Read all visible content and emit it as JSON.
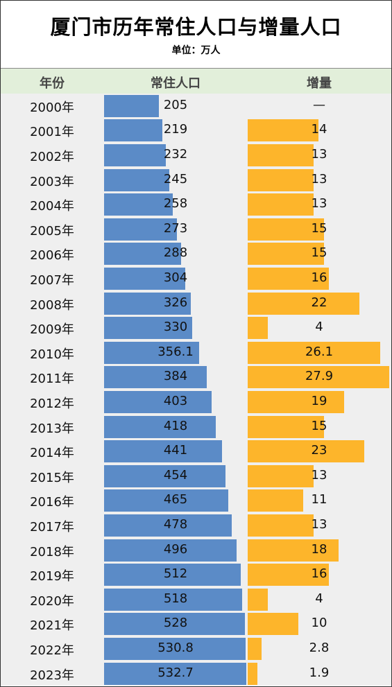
{
  "title": "厦门市历年常住人口与增量人口",
  "subtitle": "单位：万人",
  "header": {
    "year_label": "年份",
    "pop_label": "常住人口",
    "inc_label": "增量"
  },
  "colors": {
    "pop_bar": "#5b8bc7",
    "inc_bar": "#fdb52b",
    "header_bg": "#e2efda",
    "body_bg": "#efefef"
  },
  "chart_data": {
    "type": "bar",
    "title": "厦门市历年常住人口与增量人口",
    "subtitle": "单位：万人",
    "categories": [
      "2000年",
      "2001年",
      "2002年",
      "2003年",
      "2004年",
      "2005年",
      "2006年",
      "2007年",
      "2008年",
      "2009年",
      "2010年",
      "2011年",
      "2012年",
      "2013年",
      "2014年",
      "2015年",
      "2016年",
      "2017年",
      "2018年",
      "2019年",
      "2020年",
      "2021年",
      "2022年",
      "2023年"
    ],
    "series": [
      {
        "name": "常住人口",
        "values": [
          205,
          219,
          232,
          245,
          258,
          273,
          288,
          304,
          326,
          330,
          356.1,
          384,
          403,
          418,
          441,
          454,
          465,
          478,
          496,
          512,
          518,
          528,
          530.8,
          532.7
        ],
        "labels": [
          "205",
          "219",
          "232",
          "245",
          "258",
          "273",
          "288",
          "304",
          "326",
          "330",
          "356.1",
          "384",
          "403",
          "418",
          "441",
          "454",
          "465",
          "478",
          "496",
          "512",
          "518",
          "528",
          "530.8",
          "532.7"
        ]
      },
      {
        "name": "增量",
        "values": [
          null,
          14,
          13,
          13,
          13,
          15,
          15,
          16,
          22,
          4,
          26.1,
          27.9,
          19,
          15,
          23,
          13,
          11,
          13,
          18,
          16,
          4,
          10,
          2.8,
          1.9
        ],
        "labels": [
          "—",
          "14",
          "13",
          "13",
          "13",
          "15",
          "15",
          "16",
          "22",
          "4",
          "26.1",
          "27.9",
          "19",
          "15",
          "23",
          "13",
          "11",
          "13",
          "18",
          "16",
          "4",
          "10",
          "2.8",
          "1.9"
        ]
      }
    ]
  }
}
